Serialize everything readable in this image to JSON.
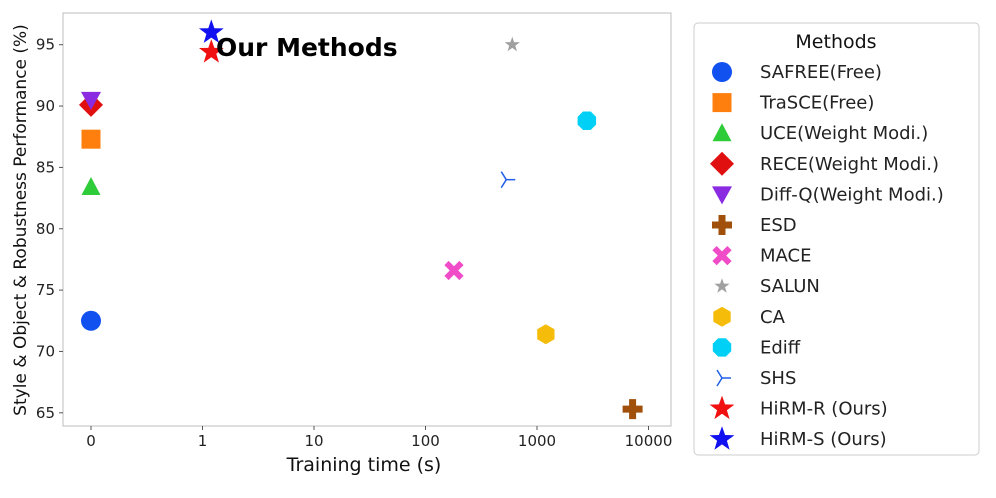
{
  "chart_data": {
    "type": "scatter",
    "title": "",
    "xlabel": "Training time (s)",
    "ylabel": "Style & Object & Robustness Performance (%)",
    "x_ticks": [
      "0",
      "1",
      "10",
      "100",
      "1000",
      "10000"
    ],
    "y_ticks": [
      "65",
      "70",
      "75",
      "80",
      "85",
      "90",
      "95"
    ],
    "ylim": [
      63.8,
      97.8
    ],
    "x_scale": "symlog",
    "grid": true,
    "legend_title": "Methods",
    "legend_position": "right, outside plot",
    "annotation": "Our Methods",
    "series": [
      {
        "name": "SAFREE(Free)",
        "marker": "circle",
        "color": "#1151f0",
        "x": 0,
        "y": 72.5
      },
      {
        "name": "TraSCE(Free)",
        "marker": "square",
        "color": "#ff7f0e",
        "x": 0,
        "y": 87.3
      },
      {
        "name": "UCE(Weight Modi.)",
        "marker": "triangle-up",
        "color": "#2fcc3a",
        "x": 0,
        "y": 83.4
      },
      {
        "name": "RECE(Weight Modi.)",
        "marker": "diamond",
        "color": "#e01010",
        "x": 0,
        "y": 90.1
      },
      {
        "name": "Diff-Q(Weight Modi.)",
        "marker": "triangle-down",
        "color": "#8a2be2",
        "x": 0,
        "y": 90.5
      },
      {
        "name": "ESD",
        "marker": "plus",
        "color": "#a0500a",
        "x": 7200,
        "y": 65.3
      },
      {
        "name": "MACE",
        "marker": "x",
        "color": "#f04cc8",
        "x": 180,
        "y": 76.6
      },
      {
        "name": "SALUN",
        "marker": "star",
        "color": "#a0a0a0",
        "x": 600,
        "y": 95.0
      },
      {
        "name": "CA",
        "marker": "hexagon",
        "color": "#f5bd0a",
        "x": 1200,
        "y": 71.4
      },
      {
        "name": "Ediff",
        "marker": "octagon",
        "color": "#00d0f5",
        "x": 2800,
        "y": 88.8
      },
      {
        "name": "SHS",
        "marker": "tri-right",
        "color": "#2160e8",
        "x": 530,
        "y": 84.0
      },
      {
        "name": "HiRM-R (Ours)",
        "marker": "star",
        "color": "#f01010",
        "x": 1.2,
        "y": 94.4
      },
      {
        "name": "HiRM-S (Ours)",
        "marker": "star",
        "color": "#1010f0",
        "x": 1.2,
        "y": 96.0
      }
    ]
  }
}
